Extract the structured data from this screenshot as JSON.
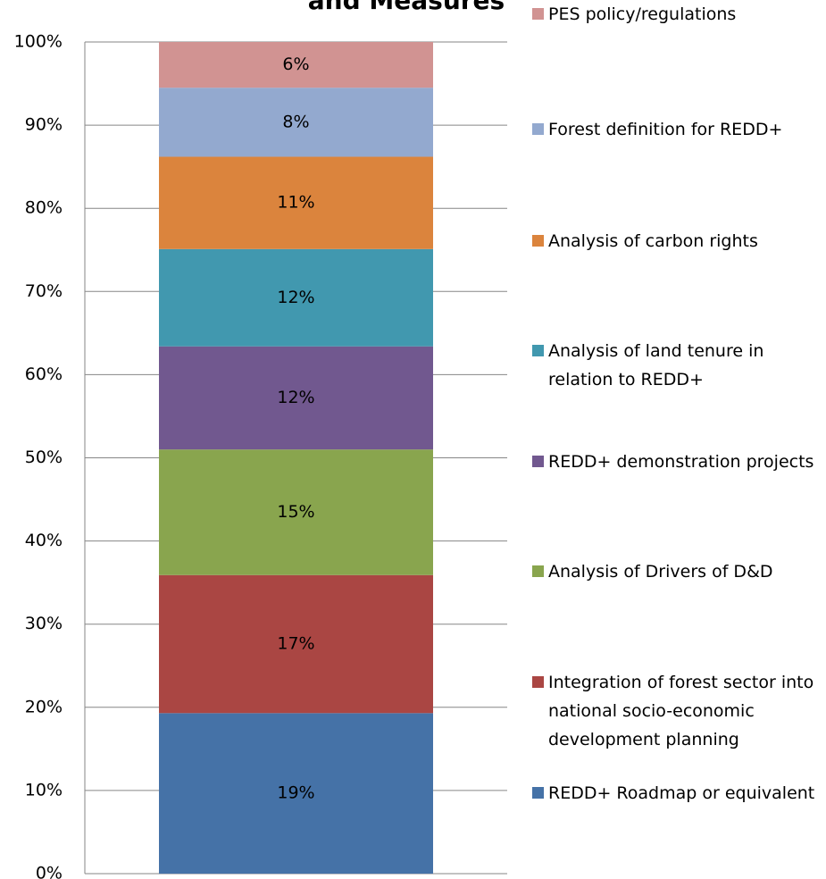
{
  "chart_data": {
    "type": "stacked_bar_100",
    "title": "and Measures",
    "categories": [
      null
    ],
    "ylim": [
      0,
      100
    ],
    "yticks": [
      {
        "value": 0,
        "label": "0%"
      },
      {
        "value": 10,
        "label": "10%"
      },
      {
        "value": 20,
        "label": "20%"
      },
      {
        "value": 30,
        "label": "30%"
      },
      {
        "value": 40,
        "label": "40%"
      },
      {
        "value": 50,
        "label": "50%"
      },
      {
        "value": 60,
        "label": "60%"
      },
      {
        "value": 70,
        "label": "70%"
      },
      {
        "value": 80,
        "label": "80%"
      },
      {
        "value": 90,
        "label": "90%"
      },
      {
        "value": 100,
        "label": "100%"
      }
    ],
    "grid": true,
    "legend": "right",
    "series": [
      {
        "name": "REDD+ Roadmap or equivalent",
        "color": "#4572a7",
        "values": [
          19.3
        ],
        "value_labels": [
          "19%"
        ]
      },
      {
        "name": "Integration of forest sector into national socio-economic development planning",
        "color": "#aa4643",
        "values": [
          16.6
        ],
        "value_labels": [
          "17%"
        ]
      },
      {
        "name": "Analysis of Drivers of D&D",
        "color": "#89a54e",
        "values": [
          15.1
        ],
        "value_labels": [
          "15%"
        ]
      },
      {
        "name": "REDD+ demonstration projects",
        "color": "#71588f",
        "values": [
          12.4
        ],
        "value_labels": [
          "12%"
        ]
      },
      {
        "name": "Analysis of land tenure in relation to REDD+",
        "color": "#4198af",
        "values": [
          11.7
        ],
        "value_labels": [
          "12%"
        ]
      },
      {
        "name": "Analysis of carbon rights",
        "color": "#db843d",
        "values": [
          11.1
        ],
        "value_labels": [
          "11%"
        ]
      },
      {
        "name": "Forest definition for REDD+",
        "color": "#93a9cf",
        "values": [
          8.3
        ],
        "value_labels": [
          "8%"
        ]
      },
      {
        "name": "PES policy/regulations",
        "color": "#d19392",
        "values": [
          5.5
        ],
        "value_labels": [
          "6%"
        ]
      }
    ]
  }
}
